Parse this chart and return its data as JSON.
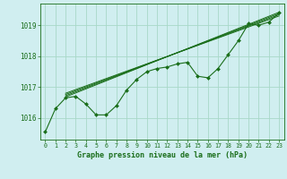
{
  "title": "Graphe pression niveau de la mer (hPa)",
  "bg_color": "#d0eef0",
  "grid_color": "#a8d8c8",
  "line_color": "#1a6e1a",
  "marker_color": "#1a6e1a",
  "x_ticks": [
    0,
    1,
    2,
    3,
    4,
    5,
    6,
    7,
    8,
    9,
    10,
    11,
    12,
    13,
    14,
    15,
    16,
    17,
    18,
    19,
    20,
    21,
    22,
    23
  ],
  "y_ticks": [
    1016,
    1017,
    1018,
    1019
  ],
  "ylim": [
    1015.3,
    1019.7
  ],
  "xlim": [
    -0.5,
    23.5
  ],
  "series1": [
    1015.55,
    1016.3,
    1016.65,
    1016.7,
    1016.45,
    1016.1,
    1016.1,
    1016.4,
    1016.9,
    1017.25,
    1017.5,
    1017.6,
    1017.65,
    1017.75,
    1017.8,
    1017.35,
    1017.3,
    1017.6,
    1018.05,
    1018.5,
    1019.05,
    1019.0,
    1019.1,
    1019.4
  ],
  "linear_lines": [
    [
      [
        2,
        1016.68
      ],
      [
        23,
        1019.42
      ]
    ],
    [
      [
        2,
        1016.72
      ],
      [
        23,
        1019.38
      ]
    ],
    [
      [
        2,
        1016.76
      ],
      [
        23,
        1019.34
      ]
    ],
    [
      [
        2,
        1016.8
      ],
      [
        23,
        1019.3
      ]
    ]
  ]
}
